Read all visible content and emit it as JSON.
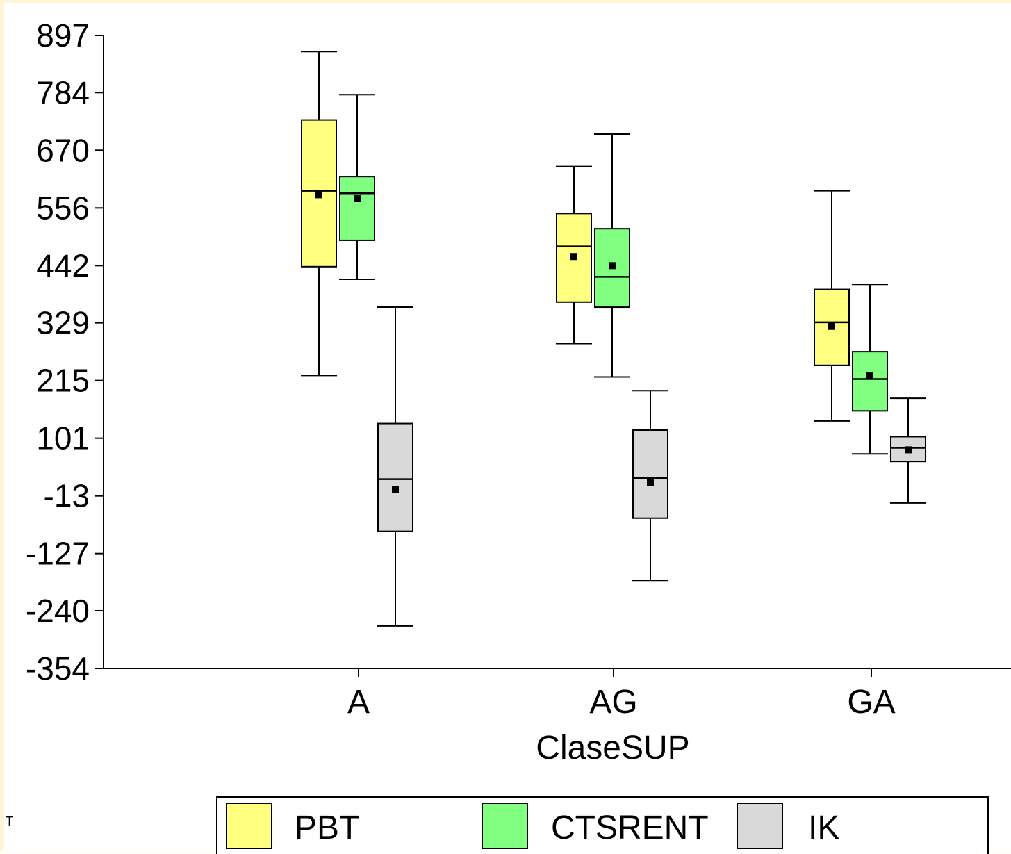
{
  "chart_data": {
    "type": "boxplot",
    "xlabel": "ClaseSUP",
    "ylabel": "",
    "y_ticks": [
      897,
      784,
      670,
      556,
      442,
      329,
      215,
      101,
      -13,
      -127,
      -240,
      -354
    ],
    "ylim": [
      -354,
      897
    ],
    "categories": [
      "A",
      "AG",
      "GA"
    ],
    "legend_position": "bottom",
    "grid": false,
    "series": [
      {
        "name": "PBT",
        "color": "#ffff80",
        "boxes": [
          {
            "min": 225,
            "q1": 440,
            "median": 590,
            "q3": 730,
            "max": 865,
            "mean": 582
          },
          {
            "min": 288,
            "q1": 370,
            "median": 480,
            "q3": 545,
            "max": 638,
            "mean": 460
          },
          {
            "min": 135,
            "q1": 245,
            "median": 330,
            "q3": 395,
            "max": 590,
            "mean": 322
          }
        ]
      },
      {
        "name": "CTSRENT",
        "color": "#80ff80",
        "boxes": [
          {
            "min": 415,
            "q1": 492,
            "median": 585,
            "q3": 618,
            "max": 780,
            "mean": 575
          },
          {
            "min": 222,
            "q1": 360,
            "median": 420,
            "q3": 515,
            "max": 702,
            "mean": 442
          },
          {
            "min": 70,
            "q1": 155,
            "median": 218,
            "q3": 272,
            "max": 405,
            "mean": 225
          }
        ]
      },
      {
        "name": "IK",
        "color": "#d9d9d9",
        "boxes": [
          {
            "min": -270,
            "q1": -83,
            "median": 20,
            "q3": 130,
            "max": 360,
            "mean": 0
          },
          {
            "min": -180,
            "q1": -57,
            "median": 22,
            "q3": 117,
            "max": 195,
            "mean": 13
          },
          {
            "min": -27,
            "q1": 55,
            "median": 82,
            "q3": 104,
            "max": 180,
            "mean": 78
          }
        ]
      }
    ]
  },
  "side_mark": "T"
}
